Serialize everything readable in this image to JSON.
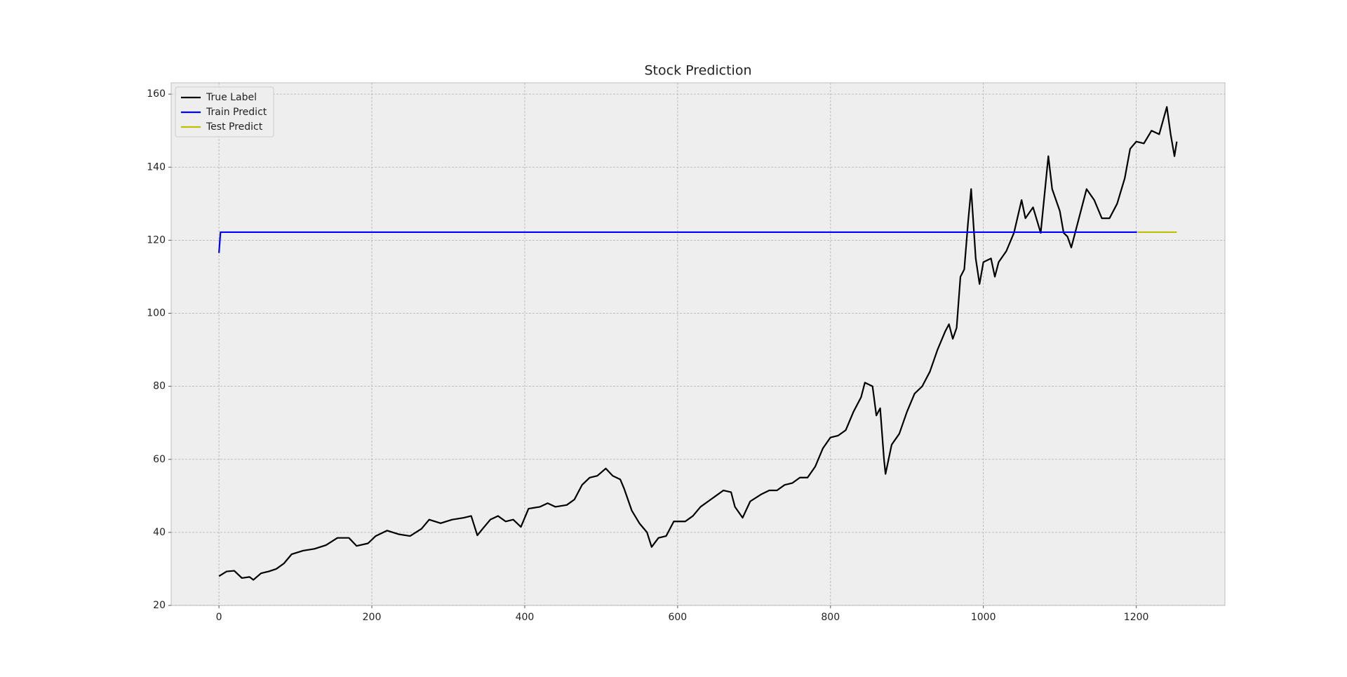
{
  "chart_data": {
    "type": "line",
    "title": "Stock Prediction",
    "xlim": [
      -62.5,
      1316
    ],
    "ylim": [
      20,
      163.1
    ],
    "xticks": [
      0,
      200,
      400,
      600,
      800,
      1000,
      1200
    ],
    "yticks": [
      20,
      40,
      60,
      80,
      100,
      120,
      140,
      160
    ],
    "grid": true,
    "legend": "upper-left",
    "series": [
      {
        "name": "True Label",
        "color": "#000000",
        "x": [
          0,
          10,
          20,
          30,
          40,
          45,
          55,
          65,
          75,
          85,
          95,
          110,
          125,
          140,
          155,
          170,
          180,
          195,
          205,
          220,
          235,
          250,
          265,
          275,
          290,
          305,
          320,
          330,
          338,
          345,
          355,
          365,
          375,
          385,
          395,
          405,
          420,
          430,
          440,
          455,
          465,
          475,
          485,
          495,
          506,
          515,
          525,
          530,
          540,
          550,
          560,
          566,
          575,
          585,
          595,
          610,
          620,
          630,
          640,
          650,
          660,
          670,
          675,
          685,
          695,
          710,
          720,
          730,
          740,
          750,
          760,
          770,
          780,
          790,
          800,
          810,
          820,
          830,
          840,
          845,
          855,
          860,
          865,
          870,
          872,
          880,
          890,
          900,
          910,
          920,
          930,
          940,
          950,
          955,
          960,
          965,
          970,
          975,
          980,
          984,
          990,
          995,
          1000,
          1010,
          1015,
          1020,
          1030,
          1040,
          1050,
          1055,
          1065,
          1075,
          1085,
          1090,
          1100,
          1105,
          1110,
          1115,
          1120,
          1130,
          1135,
          1145,
          1155,
          1165,
          1175,
          1185,
          1192,
          1200,
          1210,
          1220,
          1230,
          1240,
          1245,
          1250,
          1253
        ],
        "values": [
          28,
          29.3,
          29.5,
          27.5,
          27.8,
          27,
          28.8,
          29.3,
          30,
          31.5,
          34,
          35,
          35.5,
          36.5,
          38.5,
          38.5,
          36.3,
          37,
          39,
          40.5,
          39.5,
          39,
          41,
          43.5,
          42.5,
          43.5,
          44,
          44.5,
          39.2,
          41,
          43.5,
          44.5,
          43,
          43.5,
          41.5,
          46.5,
          47,
          48,
          47,
          47.5,
          49,
          53,
          55,
          55.5,
          57.5,
          55.5,
          54.5,
          52,
          46,
          42.5,
          40,
          36,
          38.5,
          39,
          43,
          43,
          44.5,
          47,
          48.5,
          50,
          51.5,
          51,
          47,
          44,
          48.5,
          50.5,
          51.5,
          51.5,
          53,
          53.5,
          55,
          55,
          58,
          63,
          66,
          66.5,
          68,
          73,
          77,
          81,
          80,
          72,
          74,
          60,
          56,
          64,
          67,
          73,
          78,
          80,
          84,
          90,
          95,
          97,
          93,
          96,
          110,
          112,
          125,
          134,
          115,
          108,
          114,
          115,
          110,
          114,
          117,
          122,
          131,
          126,
          129,
          122,
          143,
          134,
          128,
          122,
          121,
          118,
          122,
          130,
          134,
          131,
          126,
          126,
          130,
          137,
          145,
          147,
          146.5,
          150,
          149,
          156.5,
          149,
          143,
          147
        ]
      },
      {
        "name": "Train Predict",
        "color": "#0000ff",
        "x": [
          0,
          2,
          1201
        ],
        "values": [
          116.5,
          122.2,
          122.2
        ]
      },
      {
        "name": "Test Predict",
        "color": "#bfbf00",
        "x": [
          1202,
          1253
        ],
        "values": [
          122.2,
          122.2
        ]
      }
    ]
  }
}
